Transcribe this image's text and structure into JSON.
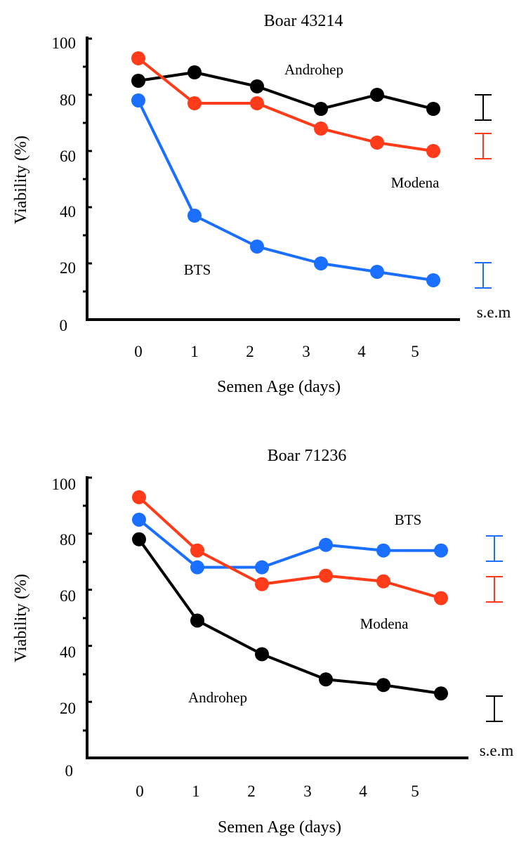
{
  "chart_data": [
    {
      "type": "line",
      "title": "Boar 43214",
      "xlabel": "Semen Age (days)",
      "ylabel": "Viability  (%)",
      "x": [
        0,
        1,
        2,
        3,
        4,
        5
      ],
      "x_ticks": [
        "0",
        "1",
        "2",
        "3",
        "4",
        "5"
      ],
      "y_ticks": [
        "0",
        "20",
        "40",
        "60",
        "80",
        "100"
      ],
      "ylim": [
        0,
        100
      ],
      "grid": false,
      "sem_label": "s.e.m",
      "series": [
        {
          "name": "Androhep",
          "color": "#000000",
          "values": [
            85,
            88,
            83,
            75,
            80,
            75
          ],
          "sem": 4.5
        },
        {
          "name": "Modena",
          "color": "#ff3b1a",
          "values": [
            93,
            77,
            77,
            68,
            63,
            60
          ],
          "sem": 4.5
        },
        {
          "name": "BTS",
          "color": "#1a6fff",
          "values": [
            78,
            37,
            26,
            20,
            17,
            14
          ],
          "sem": 4.5
        }
      ]
    },
    {
      "type": "line",
      "title": "Boar 71236",
      "xlabel": "Semen Age (days)",
      "ylabel": "Viability  (%)",
      "x": [
        0,
        1,
        2,
        3,
        4,
        5
      ],
      "x_ticks": [
        "0",
        "1",
        "2",
        "3",
        "4",
        "5"
      ],
      "y_ticks": [
        "0",
        "20",
        "40",
        "60",
        "80",
        "100"
      ],
      "ylim": [
        0,
        100
      ],
      "grid": false,
      "sem_label": "s.e.m",
      "series": [
        {
          "name": "BTS",
          "color": "#1a6fff",
          "values": [
            85,
            68,
            68,
            76,
            74,
            74
          ],
          "sem": 4.5
        },
        {
          "name": "Modena",
          "color": "#ff3b1a",
          "values": [
            93,
            74,
            62,
            65,
            63,
            57
          ],
          "sem": 4.5
        },
        {
          "name": "Androhep",
          "color": "#000000",
          "values": [
            78,
            49,
            37,
            28,
            26,
            23
          ],
          "sem": 4.5
        }
      ]
    }
  ]
}
